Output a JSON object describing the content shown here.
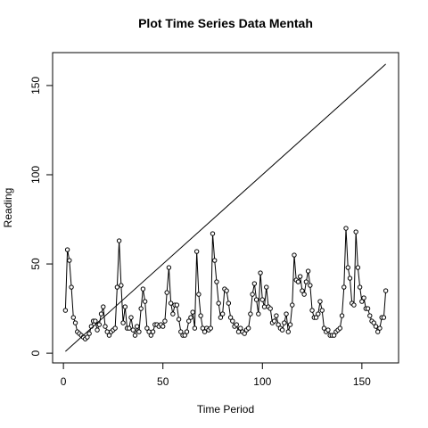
{
  "chart_data": {
    "type": "line",
    "title": "Plot Time Series Data Mentah",
    "xlabel": "Time Period",
    "ylabel": "Reading",
    "xlim": [
      -5.44,
      168.44
    ],
    "ylim": [
      -5.44,
      168.44
    ],
    "xticks": [
      0,
      50,
      100,
      150
    ],
    "yticks": [
      0,
      50,
      100,
      150
    ],
    "series": [
      {
        "color": "#000000",
        "markers": true,
        "x": [
          1,
          2,
          3,
          4,
          5,
          6,
          7,
          8,
          9,
          10,
          11,
          12,
          13,
          14,
          15,
          16,
          17,
          18,
          19,
          20,
          21,
          22,
          23,
          24,
          25,
          26,
          27,
          28,
          29,
          30,
          31,
          32,
          33,
          34,
          35,
          36,
          37,
          38,
          39,
          40,
          41,
          42,
          43,
          44,
          45,
          46,
          47,
          48,
          49,
          50,
          51,
          52,
          53,
          54,
          55,
          56,
          57,
          58,
          59,
          60,
          61,
          62,
          63,
          64,
          65,
          66,
          67,
          68,
          69,
          70,
          71,
          72,
          73,
          74,
          75,
          76,
          77,
          78,
          79,
          80,
          81,
          82,
          83,
          84,
          85,
          86,
          87,
          88,
          89,
          90,
          91,
          92,
          93,
          94,
          95,
          96,
          97,
          98,
          99,
          100,
          101,
          102,
          103,
          104,
          105,
          106,
          107,
          108,
          109,
          110,
          111,
          112,
          113,
          114,
          115,
          116,
          117,
          118,
          119,
          120,
          121,
          122,
          123,
          124,
          125,
          126,
          127,
          128,
          129,
          130,
          131,
          132,
          133,
          134,
          135,
          136,
          137,
          138,
          139,
          140,
          141,
          142,
          143,
          144,
          145,
          146,
          147,
          148,
          149,
          150,
          151,
          152,
          153,
          154,
          155,
          156,
          157,
          158,
          159,
          160,
          161,
          162
        ],
        "values": [
          24,
          58,
          52,
          37,
          20,
          17,
          12,
          11,
          10,
          9,
          8,
          9,
          11,
          15,
          18,
          18,
          13,
          16,
          22,
          26,
          15,
          12,
          10,
          12,
          13,
          14,
          37,
          63,
          38,
          17,
          26,
          14,
          14,
          20,
          13,
          10,
          15,
          12,
          25,
          36,
          29,
          14,
          12,
          10,
          12,
          16,
          16,
          15,
          16,
          15,
          18,
          34,
          48,
          28,
          22,
          27,
          27,
          19,
          12,
          10,
          10,
          12,
          18,
          20,
          23,
          14,
          57,
          33,
          21,
          14,
          12,
          14,
          13,
          14,
          67,
          52,
          40,
          28,
          20,
          22,
          36,
          35,
          28,
          20,
          18,
          15,
          16,
          12,
          14,
          12,
          11,
          13,
          14,
          22,
          33,
          39,
          30,
          22,
          45,
          30,
          26,
          37,
          26,
          25,
          17,
          18,
          21,
          16,
          14,
          13,
          17,
          22,
          12,
          16,
          27,
          55,
          41,
          40,
          43,
          35,
          33,
          40,
          46,
          38,
          24,
          20,
          20,
          22,
          29,
          24,
          14,
          12,
          13,
          10,
          10,
          10,
          12,
          13,
          14,
          21,
          37,
          70,
          48,
          42,
          28,
          27,
          68,
          48,
          37,
          29,
          31,
          25,
          25,
          21,
          18,
          17,
          15,
          12,
          14,
          20,
          20,
          35
        ]
      },
      {
        "color": "#000000",
        "markers": false,
        "x": [
          1,
          162
        ],
        "values": [
          1,
          162
        ]
      }
    ]
  }
}
